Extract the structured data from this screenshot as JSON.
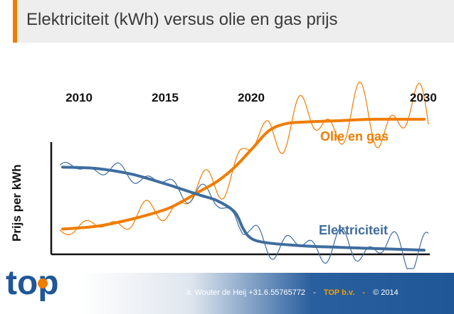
{
  "slide": {
    "title": "Elektriciteit (kWh) versus olie en gas prijs"
  },
  "chart_data": {
    "type": "line",
    "title": "",
    "ylabel": "Prijs per kWh",
    "xlabel": "",
    "x_tick_labels": [
      "2010",
      "2015",
      "2020",
      "2030"
    ],
    "x_tick_values": [
      2010,
      2015,
      2020,
      2030
    ],
    "xlim": [
      2009,
      2030
    ],
    "ylim": [
      0,
      100
    ],
    "grid": false,
    "series": [
      {
        "name": "Olie en gas",
        "color": "#f07c00",
        "x": [
          2009,
          2011,
          2013,
          2015,
          2016,
          2017,
          2018,
          2019,
          2020,
          2021,
          2022,
          2023,
          2025,
          2027,
          2030
        ],
        "values": [
          18,
          20,
          25,
          32,
          38,
          45,
          52,
          62,
          75,
          88,
          93,
          94,
          95,
          96,
          96
        ]
      },
      {
        "name": "Elektriciteit",
        "color": "#3f6d9e",
        "x": [
          2009,
          2011,
          2013,
          2015,
          2016,
          2017,
          2018,
          2019,
          2019.5,
          2020,
          2021,
          2023,
          2025,
          2030
        ],
        "values": [
          62,
          61,
          57,
          50,
          46,
          42,
          38,
          30,
          18,
          11,
          8,
          6,
          5,
          3
        ]
      }
    ]
  },
  "footer": {
    "author": "ir. Wouter de Heij +31.6.55765772",
    "separator": "-",
    "company": "TOP b.v.",
    "copyright": "© 2014"
  },
  "logo": {
    "text": "top"
  }
}
